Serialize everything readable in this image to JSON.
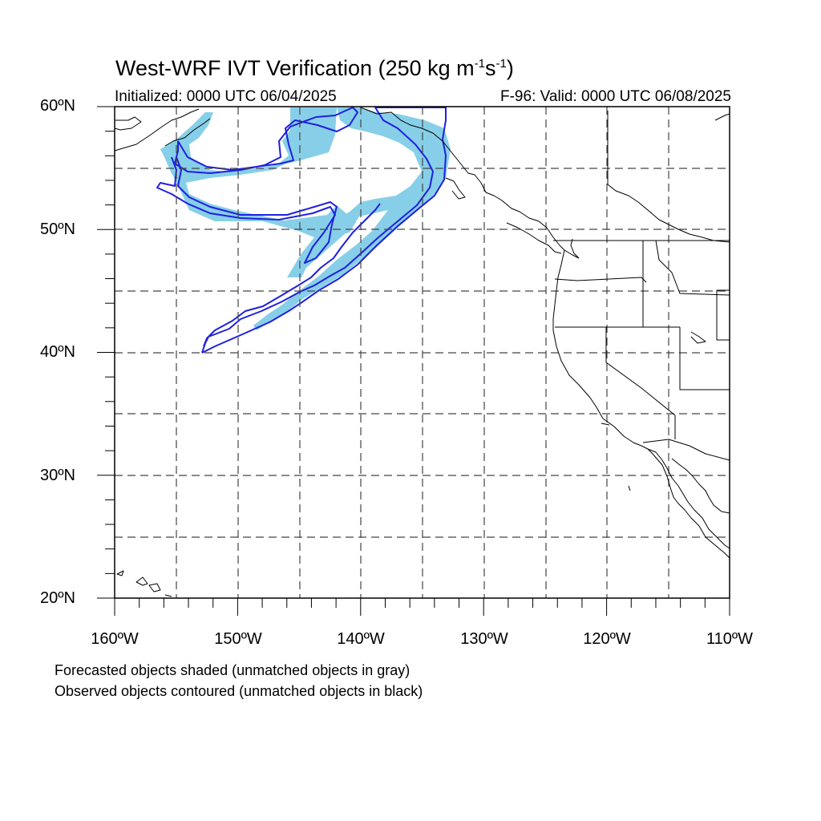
{
  "title": {
    "main": "West-WRF IVT Verification (250 kg m",
    "sup1": "-1",
    "mid": "s",
    "sup2": "-1",
    "end": ")"
  },
  "init_text": "Initialized: 0000 UTC 06/04/2025",
  "valid_text": "F-96: Valid: 0000 UTC 06/08/2025",
  "lat_labels": [
    "60ºN",
    "50ºN",
    "40ºN",
    "30ºN",
    "20ºN"
  ],
  "lon_labels": [
    "160ºW",
    "150ºW",
    "140ºW",
    "130ºW",
    "120ºW",
    "110ºW"
  ],
  "notes": [
    "Forecasted objects shaded (unmatched objects in gray)",
    "Observed objects contoured (unmatched objects in black)"
  ],
  "map_extent": {
    "lon_min": -160,
    "lon_max": -110,
    "lat_min": 20,
    "lat_max": 60
  },
  "colors": {
    "forecast_fill": "#87cfe8",
    "observed_contour": "#1f1fe0",
    "grid": "#444444",
    "coast": "#000000"
  }
}
